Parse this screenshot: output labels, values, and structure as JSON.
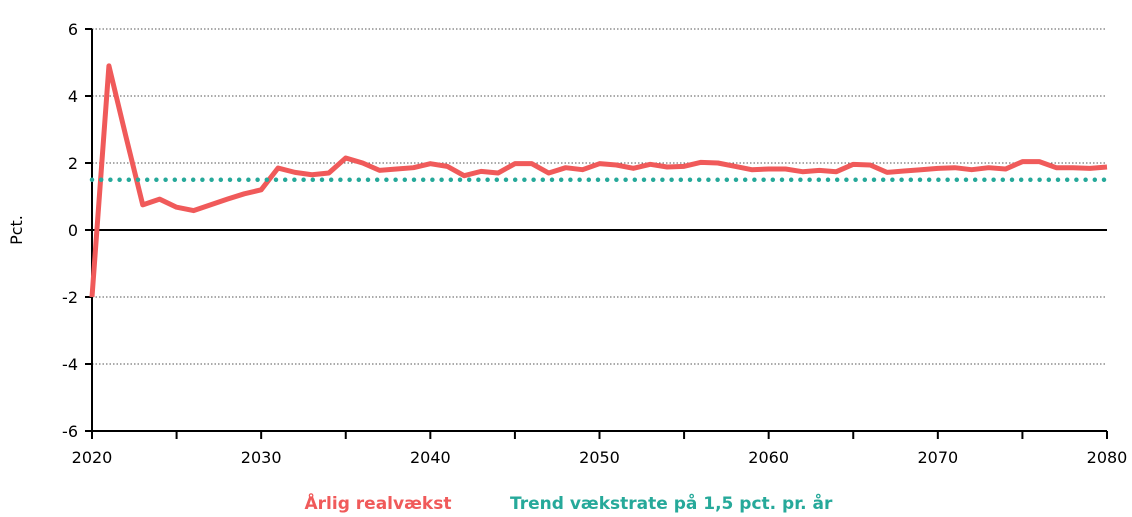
{
  "chart_data": {
    "type": "line",
    "title": "",
    "xlabel": "",
    "ylabel": "Pct.",
    "xlim": [
      2020,
      2080
    ],
    "ylim": [
      -6,
      6
    ],
    "x_ticks": [
      2020,
      2030,
      2040,
      2050,
      2060,
      2070,
      2080
    ],
    "x_tick_labels": [
      "2020",
      "2030",
      "2040",
      "2050",
      "2060",
      "2070",
      "2080"
    ],
    "y_ticks": [
      -6,
      -4,
      -2,
      0,
      2,
      4,
      6
    ],
    "y_tick_labels": [
      "-6",
      "-4",
      "-2",
      "0",
      "2",
      "4",
      "6"
    ],
    "grid": "horizontal-dotted",
    "legend": "bottom-center",
    "x": [
      2020,
      2021,
      2022,
      2023,
      2024,
      2025,
      2026,
      2027,
      2028,
      2029,
      2030,
      2031,
      2032,
      2033,
      2034,
      2035,
      2036,
      2037,
      2038,
      2039,
      2040,
      2041,
      2042,
      2043,
      2044,
      2045,
      2046,
      2047,
      2048,
      2049,
      2050,
      2051,
      2052,
      2053,
      2054,
      2055,
      2056,
      2057,
      2058,
      2059,
      2060,
      2061,
      2062,
      2063,
      2064,
      2065,
      2066,
      2067,
      2068,
      2069,
      2070,
      2071,
      2072,
      2073,
      2074,
      2075,
      2076,
      2077,
      2078,
      2079,
      2080
    ],
    "series": [
      {
        "name": "Årlig realvækst",
        "color": "#f05a5a",
        "style": "solid",
        "values": [
          -2.0,
          4.9,
          2.8,
          0.75,
          0.92,
          0.68,
          0.58,
          0.75,
          0.92,
          1.08,
          1.2,
          1.85,
          1.72,
          1.65,
          1.7,
          2.15,
          2.0,
          1.78,
          1.82,
          1.86,
          1.98,
          1.9,
          1.62,
          1.75,
          1.7,
          1.98,
          1.98,
          1.7,
          1.86,
          1.8,
          1.98,
          1.94,
          1.84,
          1.96,
          1.88,
          1.9,
          2.02,
          2.0,
          1.9,
          1.8,
          1.82,
          1.82,
          1.74,
          1.78,
          1.74,
          1.96,
          1.94,
          1.72,
          1.76,
          1.8,
          1.84,
          1.86,
          1.8,
          1.86,
          1.82,
          2.04,
          2.04,
          1.86,
          1.86,
          1.84,
          1.88
        ]
      },
      {
        "name": "Trend vækstrate på 1,5 pct. pr. år",
        "color": "#26a99a",
        "style": "dotted",
        "values": [
          1.5,
          1.5,
          1.5,
          1.5,
          1.5,
          1.5,
          1.5,
          1.5,
          1.5,
          1.5,
          1.5,
          1.5,
          1.5,
          1.5,
          1.5,
          1.5,
          1.5,
          1.5,
          1.5,
          1.5,
          1.5,
          1.5,
          1.5,
          1.5,
          1.5,
          1.5,
          1.5,
          1.5,
          1.5,
          1.5,
          1.5,
          1.5,
          1.5,
          1.5,
          1.5,
          1.5,
          1.5,
          1.5,
          1.5,
          1.5,
          1.5,
          1.5,
          1.5,
          1.5,
          1.5,
          1.5,
          1.5,
          1.5,
          1.5,
          1.5,
          1.5,
          1.5,
          1.5,
          1.5,
          1.5,
          1.5,
          1.5,
          1.5,
          1.5,
          1.5,
          1.5
        ]
      }
    ]
  }
}
